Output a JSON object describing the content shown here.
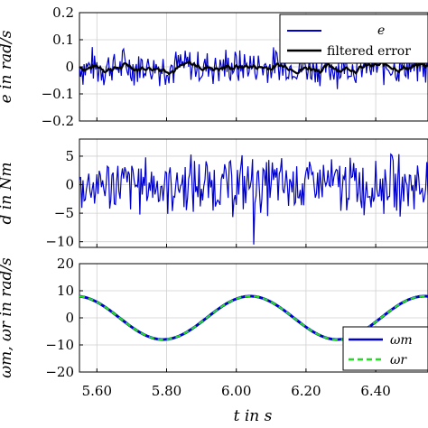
{
  "chart_data": [
    {
      "type": "line",
      "ylabel": "e in rad/s",
      "ylim": [
        -0.2,
        0.2
      ],
      "yticks": [
        "0.2",
        "0.1",
        "0",
        "−0.1",
        "−0.2"
      ],
      "grid": true,
      "legend_position": "top-right",
      "series": [
        {
          "name": "e",
          "color": "#0000cc",
          "amplitude": 0.06
        },
        {
          "name": "filtered error",
          "color": "#000000",
          "amplitude": 0.012
        }
      ]
    },
    {
      "type": "line",
      "ylabel": "d in Nm",
      "ylim": [
        -11,
        8
      ],
      "yticks": [
        "5",
        "0",
        "−5",
        "−10"
      ],
      "grid": true,
      "series": [
        {
          "name": "",
          "color": "#0000cc",
          "amplitude": 4.5
        }
      ]
    },
    {
      "type": "line",
      "ylabel": "ωm, ωr in rad/s",
      "ylim": [
        -20,
        20
      ],
      "yticks": [
        "20",
        "10",
        "0",
        "−10",
        "−20"
      ],
      "xlabel": "t in s",
      "xlim": [
        5.55,
        6.55
      ],
      "xticks": [
        "5.60",
        "5.80",
        "6.00",
        "6.20",
        "6.40"
      ],
      "grid": true,
      "legend_position": "bottom-right",
      "series": [
        {
          "name": "ωm",
          "color": "#0000cc",
          "amplitude": 8,
          "period": 0.5,
          "phase_peak_t": 6.04
        },
        {
          "name": "ωr",
          "color": "#22dd22",
          "amplitude": 8,
          "period": 0.5,
          "phase_peak_t": 6.04,
          "dashed": true
        }
      ]
    }
  ]
}
